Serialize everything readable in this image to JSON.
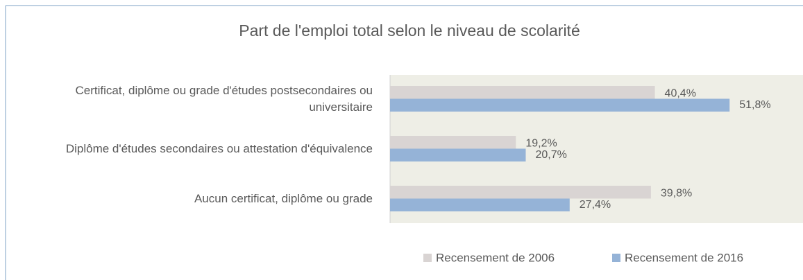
{
  "chart_data": {
    "type": "barh",
    "title": "Part de l'emploi total selon le niveau de scolarité",
    "categories": [
      "Certificat, diplôme ou grade d'études postsecondaires ou universitaire",
      "Diplôme d'études secondaires ou attestation d'équivalence",
      "Aucun certificat, diplôme ou grade"
    ],
    "series": [
      {
        "name": "Recensement de 2006",
        "color": "#d9d4d3",
        "values": [
          40.4,
          19.2,
          39.8
        ],
        "value_labels": [
          "40,4%",
          "19,2%",
          "39,8%"
        ]
      },
      {
        "name": "Recensement de 2016",
        "color": "#95b3d7",
        "values": [
          51.8,
          20.7,
          27.4
        ],
        "value_labels": [
          "51,8%",
          "20,7%",
          "27,4%"
        ]
      }
    ],
    "xlim": [
      0,
      63
    ],
    "legend": "bottom"
  }
}
